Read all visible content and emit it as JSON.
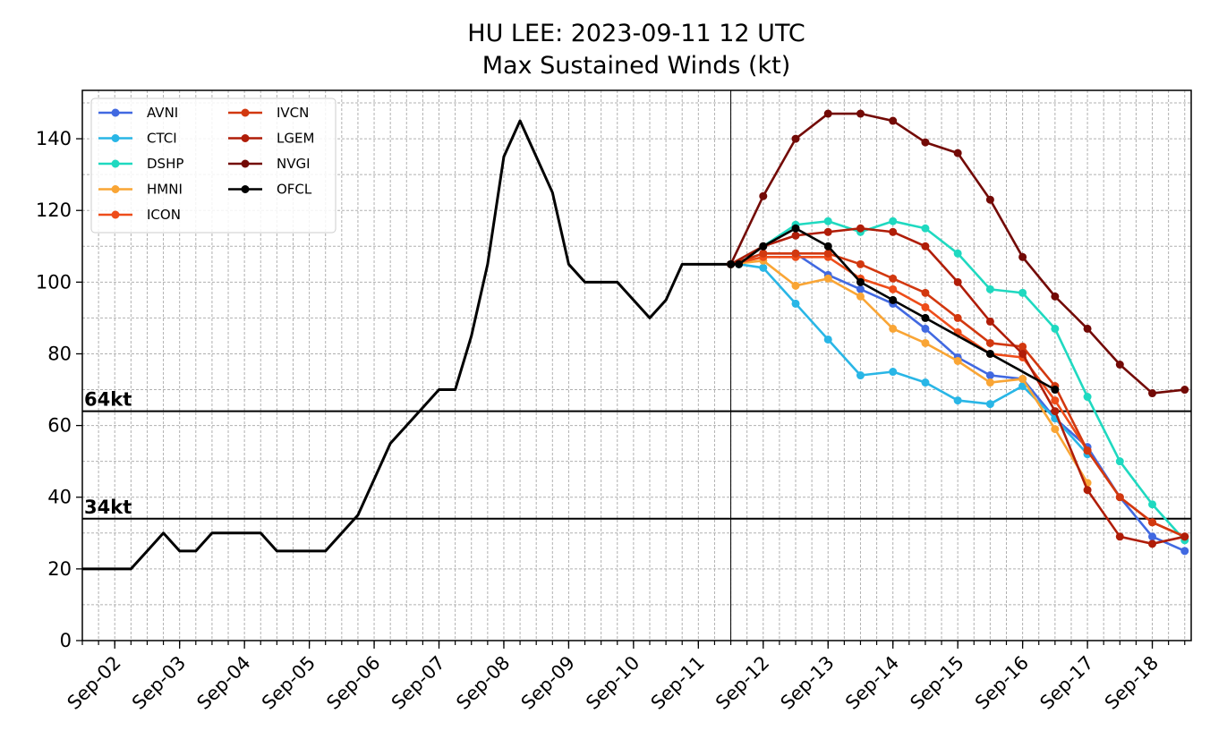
{
  "chart_data": {
    "type": "line",
    "title": "HU LEE: 2023-09-11 12 UTC",
    "subtitle": "Max Sustained Winds (kt)",
    "xlim": [
      1.5,
      18.6
    ],
    "ylim": [
      0,
      153.5
    ],
    "yticks": [
      0,
      20,
      40,
      60,
      80,
      100,
      120,
      140
    ],
    "xticks": [
      {
        "value": 2,
        "label": "Sep-02"
      },
      {
        "value": 3,
        "label": "Sep-03"
      },
      {
        "value": 4,
        "label": "Sep-04"
      },
      {
        "value": 5,
        "label": "Sep-05"
      },
      {
        "value": 6,
        "label": "Sep-06"
      },
      {
        "value": 7,
        "label": "Sep-07"
      },
      {
        "value": 8,
        "label": "Sep-08"
      },
      {
        "value": 9,
        "label": "Sep-09"
      },
      {
        "value": 10,
        "label": "Sep-10"
      },
      {
        "value": 11,
        "label": "Sep-11"
      },
      {
        "value": 12,
        "label": "Sep-12"
      },
      {
        "value": 13,
        "label": "Sep-13"
      },
      {
        "value": 14,
        "label": "Sep-14"
      },
      {
        "value": 15,
        "label": "Sep-15"
      },
      {
        "value": 16,
        "label": "Sep-16"
      },
      {
        "value": 17,
        "label": "Sep-17"
      },
      {
        "value": 18,
        "label": "Sep-18"
      }
    ],
    "xminor_step": 0.25,
    "yminor_step": 10,
    "grid": true,
    "legend": "upper left",
    "hlines": [
      {
        "value": 64,
        "label": "64kt"
      },
      {
        "value": 34,
        "label": "34kt"
      }
    ],
    "vline": 11.5,
    "series": [
      {
        "color": "#000000",
        "marker": false,
        "linewidth": 3,
        "x": [
          1.5,
          1.75,
          2,
          2.25,
          2.5,
          2.75,
          3,
          3.25,
          3.5,
          3.75,
          4,
          4.25,
          4.5,
          4.75,
          5,
          5.25,
          5.5,
          5.75,
          6,
          6.25,
          6.5,
          6.75,
          7,
          7.25,
          7.5,
          7.75,
          8,
          8.25,
          8.5,
          8.75,
          9,
          9.25,
          9.5,
          9.75,
          10,
          10.25,
          10.5,
          10.75,
          11,
          11.25,
          11.5
        ],
        "values": [
          20,
          20,
          20,
          20,
          25,
          30,
          25,
          25,
          30,
          30,
          30,
          30,
          25,
          25,
          25,
          25,
          30,
          35,
          45,
          55,
          60,
          65,
          70,
          70,
          85,
          105,
          135,
          145,
          135,
          125,
          105,
          100,
          100,
          100,
          95,
          90,
          95,
          105,
          105,
          105,
          105
        ]
      },
      {
        "name": "AVNI",
        "color": "#4169e1",
        "x": [
          11.5,
          12,
          12.5,
          13,
          13.5,
          14,
          14.5,
          15,
          15.5,
          16,
          16.5,
          17,
          17.5,
          18,
          18.5
        ],
        "values": [
          105,
          108,
          108,
          102,
          98,
          94,
          87,
          79,
          74,
          73,
          62,
          54,
          40,
          29,
          25
        ]
      },
      {
        "name": "CTCI",
        "color": "#29b6e6",
        "x": [
          11.5,
          11.625,
          12,
          12.5,
          13,
          13.5,
          14,
          14.5,
          15,
          15.5,
          16,
          16.5,
          17
        ],
        "values": [
          105,
          105,
          104,
          94,
          84,
          74,
          75,
          72,
          67,
          66,
          71,
          62,
          52
        ]
      },
      {
        "name": "DSHP",
        "color": "#1fd9c0",
        "x": [
          11.5,
          12,
          12.5,
          13,
          13.5,
          14,
          14.5,
          15,
          15.5,
          16,
          16.5,
          17,
          17.5,
          18,
          18.5
        ],
        "values": [
          105,
          110,
          116,
          117,
          114,
          117,
          115,
          108,
          98,
          97,
          87,
          68,
          50,
          38,
          28
        ]
      },
      {
        "name": "HMNI",
        "color": "#f9a535",
        "x": [
          11.5,
          12,
          12.5,
          13,
          13.5,
          14,
          14.5,
          15,
          15.5,
          16,
          16.5,
          17
        ],
        "values": [
          105,
          106,
          99,
          101,
          96,
          87,
          83,
          78,
          72,
          73,
          59,
          44
        ]
      },
      {
        "name": "ICON",
        "color": "#ee4d1a",
        "x": [
          11.5,
          12,
          12.5,
          13,
          13.5,
          14,
          14.5,
          15,
          15.5,
          16,
          16.5,
          17,
          17.5,
          18,
          18.5
        ],
        "values": [
          105,
          107,
          107,
          107,
          101,
          98,
          93,
          86,
          80,
          79,
          67,
          53,
          40,
          33,
          29
        ]
      },
      {
        "name": "IVCN",
        "color": "#d2380f",
        "x": [
          11.5,
          12,
          12.5,
          13,
          13.5,
          14,
          14.5,
          15,
          15.5,
          16,
          16.5,
          17,
          17.5,
          18,
          18.5
        ],
        "values": [
          105,
          108,
          108,
          108,
          105,
          101,
          97,
          90,
          83,
          82,
          71,
          53,
          40,
          33,
          29
        ]
      },
      {
        "name": "LGEM",
        "color": "#b01d08",
        "x": [
          11.5,
          12,
          12.5,
          13,
          13.5,
          14,
          14.5,
          15,
          15.5,
          16,
          16.5,
          17,
          17.5,
          18,
          18.5
        ],
        "values": [
          105,
          110,
          113,
          114,
          115,
          114,
          110,
          100,
          89,
          80,
          64,
          42,
          29,
          27,
          29
        ]
      },
      {
        "name": "NVGI",
        "color": "#730a06",
        "x": [
          11.5,
          12,
          12.5,
          13,
          13.5,
          14,
          14.5,
          15,
          15.5,
          16,
          16.5,
          17,
          17.5,
          18,
          18.5
        ],
        "values": [
          105,
          124,
          140,
          147,
          147,
          145,
          139,
          136,
          123,
          107,
          96,
          87,
          77,
          69,
          70
        ]
      },
      {
        "name": "OFCL",
        "color": "#000000",
        "x": [
          11.5,
          11.625,
          12,
          12.5,
          13,
          13.5,
          14,
          14.5,
          15.5,
          16.5
        ],
        "values": [
          105,
          105,
          110,
          115,
          110,
          100,
          95,
          90,
          80,
          70
        ]
      }
    ]
  }
}
